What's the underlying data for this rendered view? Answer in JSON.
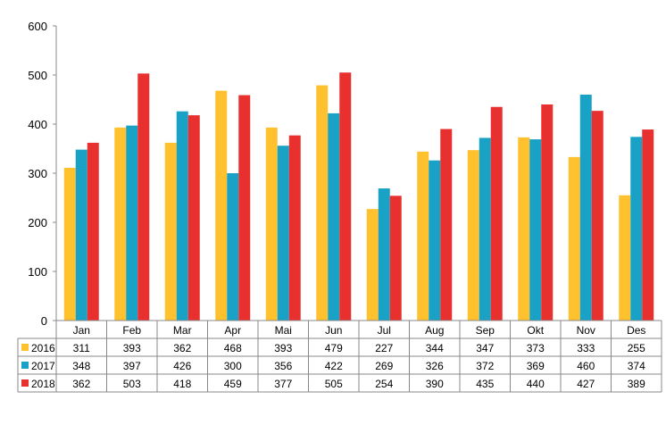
{
  "chart_data": {
    "type": "bar",
    "categories": [
      "Jan",
      "Feb",
      "Mar",
      "Apr",
      "Mai",
      "Jun",
      "Jul",
      "Aug",
      "Sep",
      "Okt",
      "Nov",
      "Des"
    ],
    "series": [
      {
        "name": "2016",
        "color": "#FFC12E",
        "values": [
          311,
          393,
          362,
          468,
          393,
          479,
          227,
          344,
          347,
          373,
          333,
          255
        ]
      },
      {
        "name": "2017",
        "color": "#1AA1C6",
        "values": [
          348,
          397,
          426,
          300,
          356,
          422,
          269,
          326,
          372,
          369,
          460,
          374
        ]
      },
      {
        "name": "2018",
        "color": "#E8302E",
        "values": [
          362,
          503,
          418,
          459,
          377,
          505,
          254,
          390,
          435,
          440,
          427,
          389
        ]
      }
    ],
    "ylim": [
      0,
      600
    ],
    "yticks": [
      "0",
      "100",
      "200",
      "300",
      "400",
      "500",
      "600"
    ],
    "grid": false,
    "legend": "data-table"
  }
}
